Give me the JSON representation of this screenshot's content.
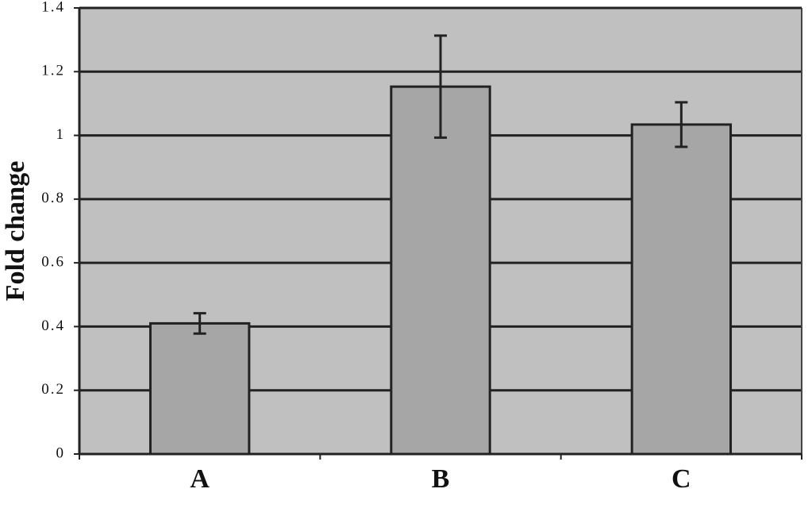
{
  "chart_data": {
    "type": "bar",
    "ylabel": "Fold change",
    "categories": [
      "A",
      "B",
      "C"
    ],
    "values": [
      0.41,
      1.153,
      1.034
    ],
    "errors": [
      0.032,
      0.16,
      0.07
    ],
    "color": "#a6a6a6",
    "ylim": [
      0,
      1.4
    ],
    "yticks": [
      0,
      0.2,
      0.4,
      0.6,
      0.8,
      1,
      1.2,
      1.4
    ],
    "grid": true
  }
}
